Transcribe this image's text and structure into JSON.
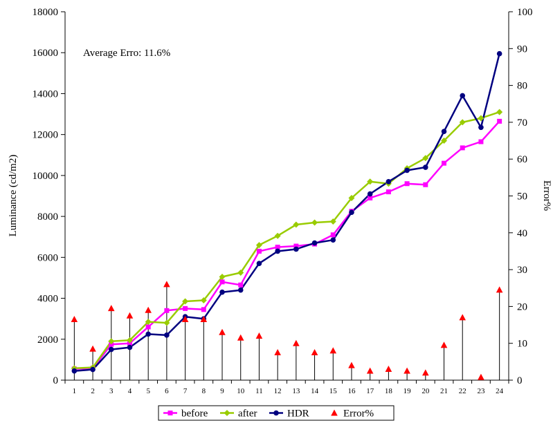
{
  "chart_data": {
    "type": "line",
    "annotation": "Average Erro: 11.6%",
    "ylabel_left": "Luminance (cd/m2)",
    "ylabel_right": "Error%",
    "ylim_left": [
      0,
      18000
    ],
    "ylim_right": [
      0,
      100
    ],
    "yticks_left": [
      0,
      2000,
      4000,
      6000,
      8000,
      10000,
      12000,
      14000,
      16000,
      18000
    ],
    "yticks_right": [
      0,
      10,
      20,
      30,
      40,
      50,
      60,
      70,
      80,
      90,
      100
    ],
    "grid": false,
    "legend_position": "bottom",
    "categories": [
      "1",
      "2",
      "3",
      "4",
      "5",
      "6",
      "7",
      "8",
      "9",
      "10",
      "11",
      "12",
      "13",
      "14",
      "15",
      "16",
      "17",
      "18",
      "19",
      "20",
      "21",
      "22",
      "23",
      "24"
    ],
    "series": [
      {
        "name": "before",
        "axis": "left",
        "color": "#ff00ff",
        "marker": "square",
        "values": [
          550,
          580,
          1750,
          1800,
          2600,
          3400,
          3500,
          3450,
          4800,
          4650,
          6300,
          6500,
          6550,
          6650,
          7100,
          8250,
          8900,
          9200,
          9600,
          9550,
          10600,
          11350,
          11650,
          12650
        ]
      },
      {
        "name": "after",
        "axis": "left",
        "color": "#99cc00",
        "marker": "diamond",
        "values": [
          580,
          620,
          1900,
          1950,
          2850,
          2800,
          3850,
          3900,
          5050,
          5250,
          6600,
          7050,
          7600,
          7700,
          7750,
          8900,
          9700,
          9600,
          10350,
          10850,
          11700,
          12600,
          12800,
          13100
        ]
      },
      {
        "name": "HDR",
        "axis": "left",
        "color": "#000080",
        "marker": "circle",
        "values": [
          450,
          520,
          1500,
          1600,
          2250,
          2200,
          3100,
          3000,
          4300,
          4400,
          5700,
          6300,
          6400,
          6700,
          6850,
          8200,
          9100,
          9700,
          10250,
          10400,
          12150,
          13900,
          12350,
          15950
        ]
      },
      {
        "name": "Error%",
        "axis": "right",
        "color": "#ff0000",
        "marker": "triangle",
        "values": [
          16.5,
          8.5,
          19.5,
          17.5,
          19,
          26,
          16.5,
          16.5,
          13,
          11.5,
          12,
          7.5,
          10,
          7.5,
          8,
          4,
          2.5,
          3,
          2.5,
          2,
          9.5,
          17,
          0.8,
          24.5
        ]
      }
    ]
  }
}
